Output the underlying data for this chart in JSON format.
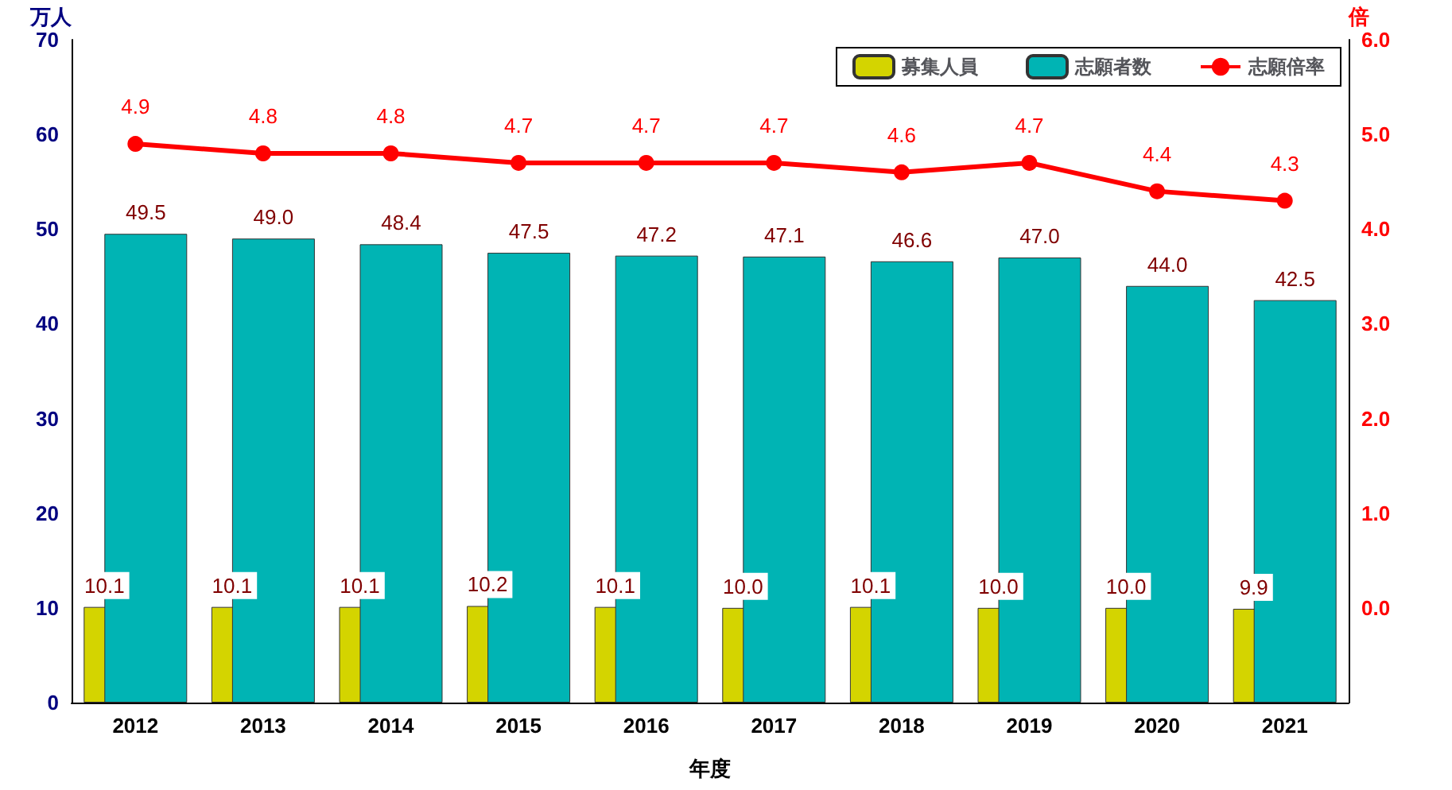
{
  "chart_data": {
    "type": "bar",
    "ylabel": "万人",
    "y2label": "倍",
    "xlabel": "年度",
    "categories": [
      "2012",
      "2013",
      "2014",
      "2015",
      "2016",
      "2017",
      "2018",
      "2019",
      "2020",
      "2021"
    ],
    "series": [
      {
        "name": "募集人員",
        "color": "#d4d400",
        "values": [
          10.1,
          10.1,
          10.1,
          10.2,
          10.1,
          10.0,
          10.1,
          10.0,
          10.0,
          9.9
        ],
        "value_labels": [
          "10.1",
          "10.1",
          "10.1",
          "10.2",
          "10.1",
          "10.0",
          "10.1",
          "10.0",
          "10.0",
          "9.9"
        ]
      },
      {
        "name": "志願者数",
        "color": "#00b4b4",
        "values": [
          49.5,
          49.0,
          48.4,
          47.5,
          47.2,
          47.1,
          46.6,
          47.0,
          44.0,
          42.5
        ],
        "value_labels": [
          "49.5",
          "49.0",
          "48.4",
          "47.5",
          "47.2",
          "47.1",
          "46.6",
          "47.0",
          "44.0",
          "42.5"
        ]
      },
      {
        "name": "志願倍率",
        "type": "line",
        "axis": "y2",
        "color": "#ff0000",
        "values": [
          4.9,
          4.8,
          4.8,
          4.7,
          4.7,
          4.7,
          4.6,
          4.7,
          4.4,
          4.3
        ],
        "value_labels": [
          "4.9",
          "4.8",
          "4.8",
          "4.7",
          "4.7",
          "4.7",
          "4.6",
          "4.7",
          "4.4",
          "4.3"
        ]
      }
    ],
    "ylim": [
      0,
      70
    ],
    "yticks": [
      0,
      10,
      20,
      30,
      40,
      50,
      60,
      70
    ],
    "y2lim": [
      -1,
      6
    ],
    "y2ticks": [
      {
        "value": 0,
        "label": "0.0"
      },
      {
        "value": 1,
        "label": "1.0"
      },
      {
        "value": 2,
        "label": "2.0"
      },
      {
        "value": 3,
        "label": "3.0"
      },
      {
        "value": 4,
        "label": "4.0"
      },
      {
        "value": 5,
        "label": "5.0"
      },
      {
        "value": 6,
        "label": "6.0"
      }
    ],
    "legend": "top right",
    "grid": false,
    "marker": "circle",
    "line_style": "solid"
  }
}
